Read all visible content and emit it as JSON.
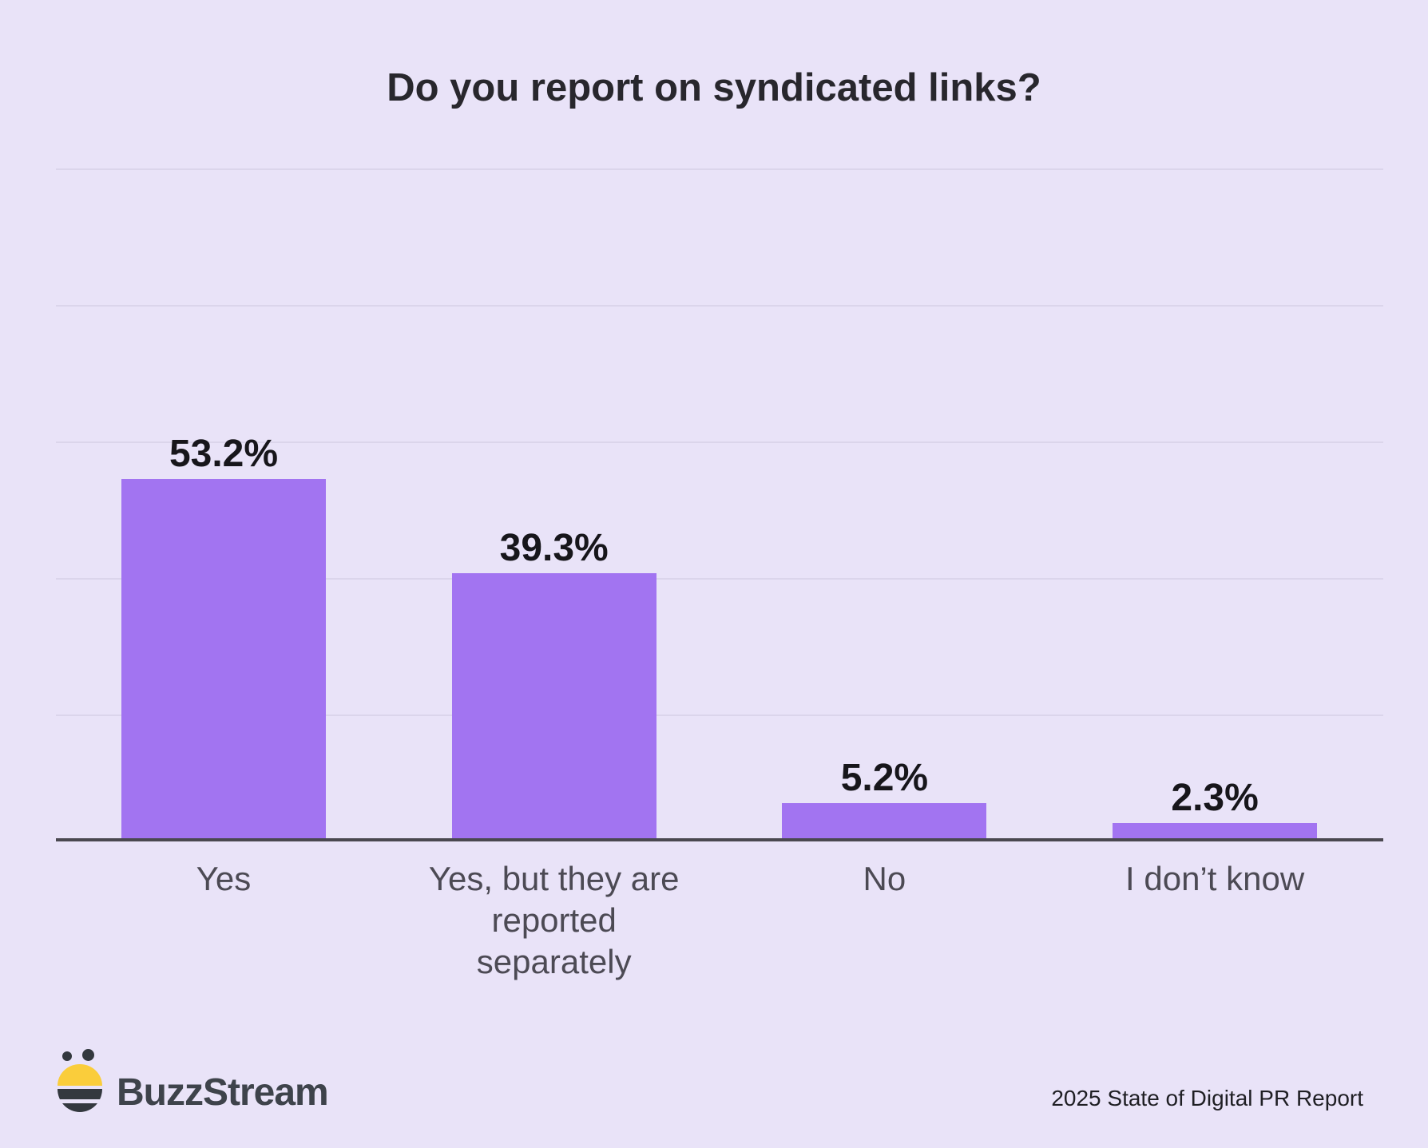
{
  "page": {
    "background_color": "#E9E3F8"
  },
  "chart_data": {
    "type": "bar",
    "title": "Do you report on syndicated links?",
    "categories": [
      "Yes",
      "Yes, but they are\nreported\nseparately",
      "No",
      "I don’t know"
    ],
    "values": [
      53.2,
      39.3,
      5.2,
      2.3
    ],
    "value_labels": [
      "53.2%",
      "39.3%",
      "5.2%",
      "2.3%"
    ],
    "unit": "%",
    "xlabel": "",
    "ylabel": "",
    "ylim": [
      0,
      100
    ],
    "grid": "horizontal gridlines every 20%, no y tick labels",
    "legend": "none",
    "bar_color": "#A274F1",
    "axis_color": "#4A4850",
    "value_label_color": "#17161B",
    "category_label_color": "#4C4A54",
    "background_color": "#E9E3F8"
  },
  "footer": {
    "brand": "BuzzStream",
    "source": "2025 State of Digital PR Report",
    "bee_yellow": "#FACD3B",
    "bee_dark": "#33383E"
  }
}
